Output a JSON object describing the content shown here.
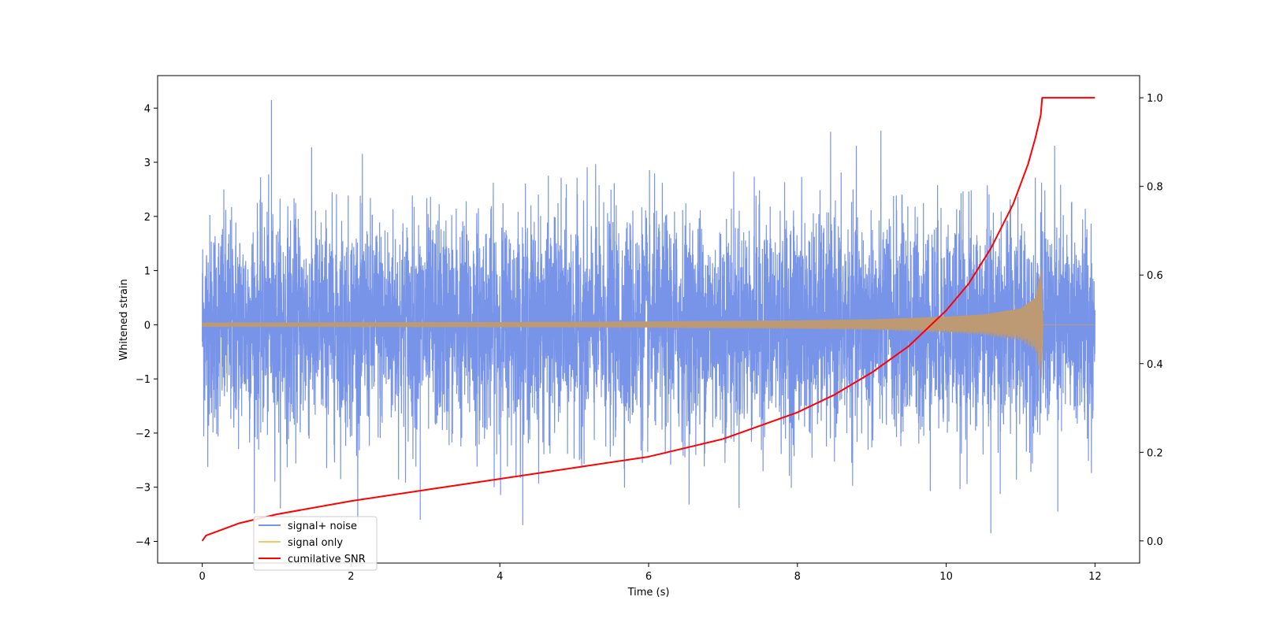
{
  "chart_data": {
    "type": "line",
    "title": "",
    "xlabel": "Time (s)",
    "ylabel": "Whitened strain",
    "y2label": "",
    "xlim": [
      -0.6,
      12.6
    ],
    "ylim": [
      -4.4,
      4.6
    ],
    "y2lim": [
      -0.05,
      1.05
    ],
    "xticks": [
      0,
      2,
      4,
      6,
      8,
      10,
      12
    ],
    "xtick_labels": [
      "0",
      "2",
      "4",
      "6",
      "8",
      "10",
      "12"
    ],
    "yticks": [
      4,
      3,
      2,
      1,
      0,
      -1,
      -2,
      -3,
      -4
    ],
    "ytick_labels": [
      "4",
      "3",
      "2",
      "1",
      "0",
      "−1",
      "−2",
      "−3",
      "−4"
    ],
    "y2ticks": [
      1.0,
      0.8,
      0.6,
      0.4,
      0.2,
      0.0
    ],
    "y2tick_labels": [
      "1.0",
      "0.8",
      "0.6",
      "0.4",
      "0.2",
      "0.0"
    ],
    "grid": false,
    "legend_position": "lower-left",
    "series": [
      {
        "name": "signal+ noise",
        "axis": "left",
        "color": "#7894e8",
        "kind": "noise-trace",
        "x_range": [
          0,
          12
        ],
        "typical_envelope": [
          -2.5,
          2.5
        ],
        "extremes": [
          [
            0.93,
            4.15
          ],
          [
            10.6,
            -3.85
          ],
          [
            2.93,
            -3.6
          ],
          [
            11.5,
            -3.45
          ]
        ]
      },
      {
        "name": "signal only",
        "axis": "left",
        "color": "#ffc266",
        "blend_color": "#bd9a73",
        "kind": "chirp",
        "x_range": [
          0,
          12
        ],
        "envelope": {
          "x": [
            0,
            2,
            4,
            6,
            8,
            9,
            10,
            10.5,
            11,
            11.2,
            11.28,
            11.3,
            12
          ],
          "y": [
            0.04,
            0.045,
            0.05,
            0.06,
            0.08,
            0.1,
            0.15,
            0.19,
            0.3,
            0.5,
            1.05,
            0.0,
            0.0
          ]
        }
      },
      {
        "name": "cumilative SNR",
        "axis": "right",
        "color": "#ff0000",
        "kind": "line",
        "x": [
          0,
          0.05,
          0.5,
          1,
          2,
          3,
          4,
          5,
          6,
          7,
          8,
          8.5,
          9,
          9.5,
          10,
          10.3,
          10.6,
          10.9,
          11.1,
          11.2,
          11.27,
          11.29,
          12
        ],
        "y": [
          0.0,
          0.012,
          0.04,
          0.06,
          0.09,
          0.115,
          0.14,
          0.165,
          0.19,
          0.23,
          0.29,
          0.33,
          0.38,
          0.44,
          0.52,
          0.58,
          0.66,
          0.76,
          0.85,
          0.91,
          0.96,
          1.0,
          1.0
        ]
      }
    ]
  }
}
